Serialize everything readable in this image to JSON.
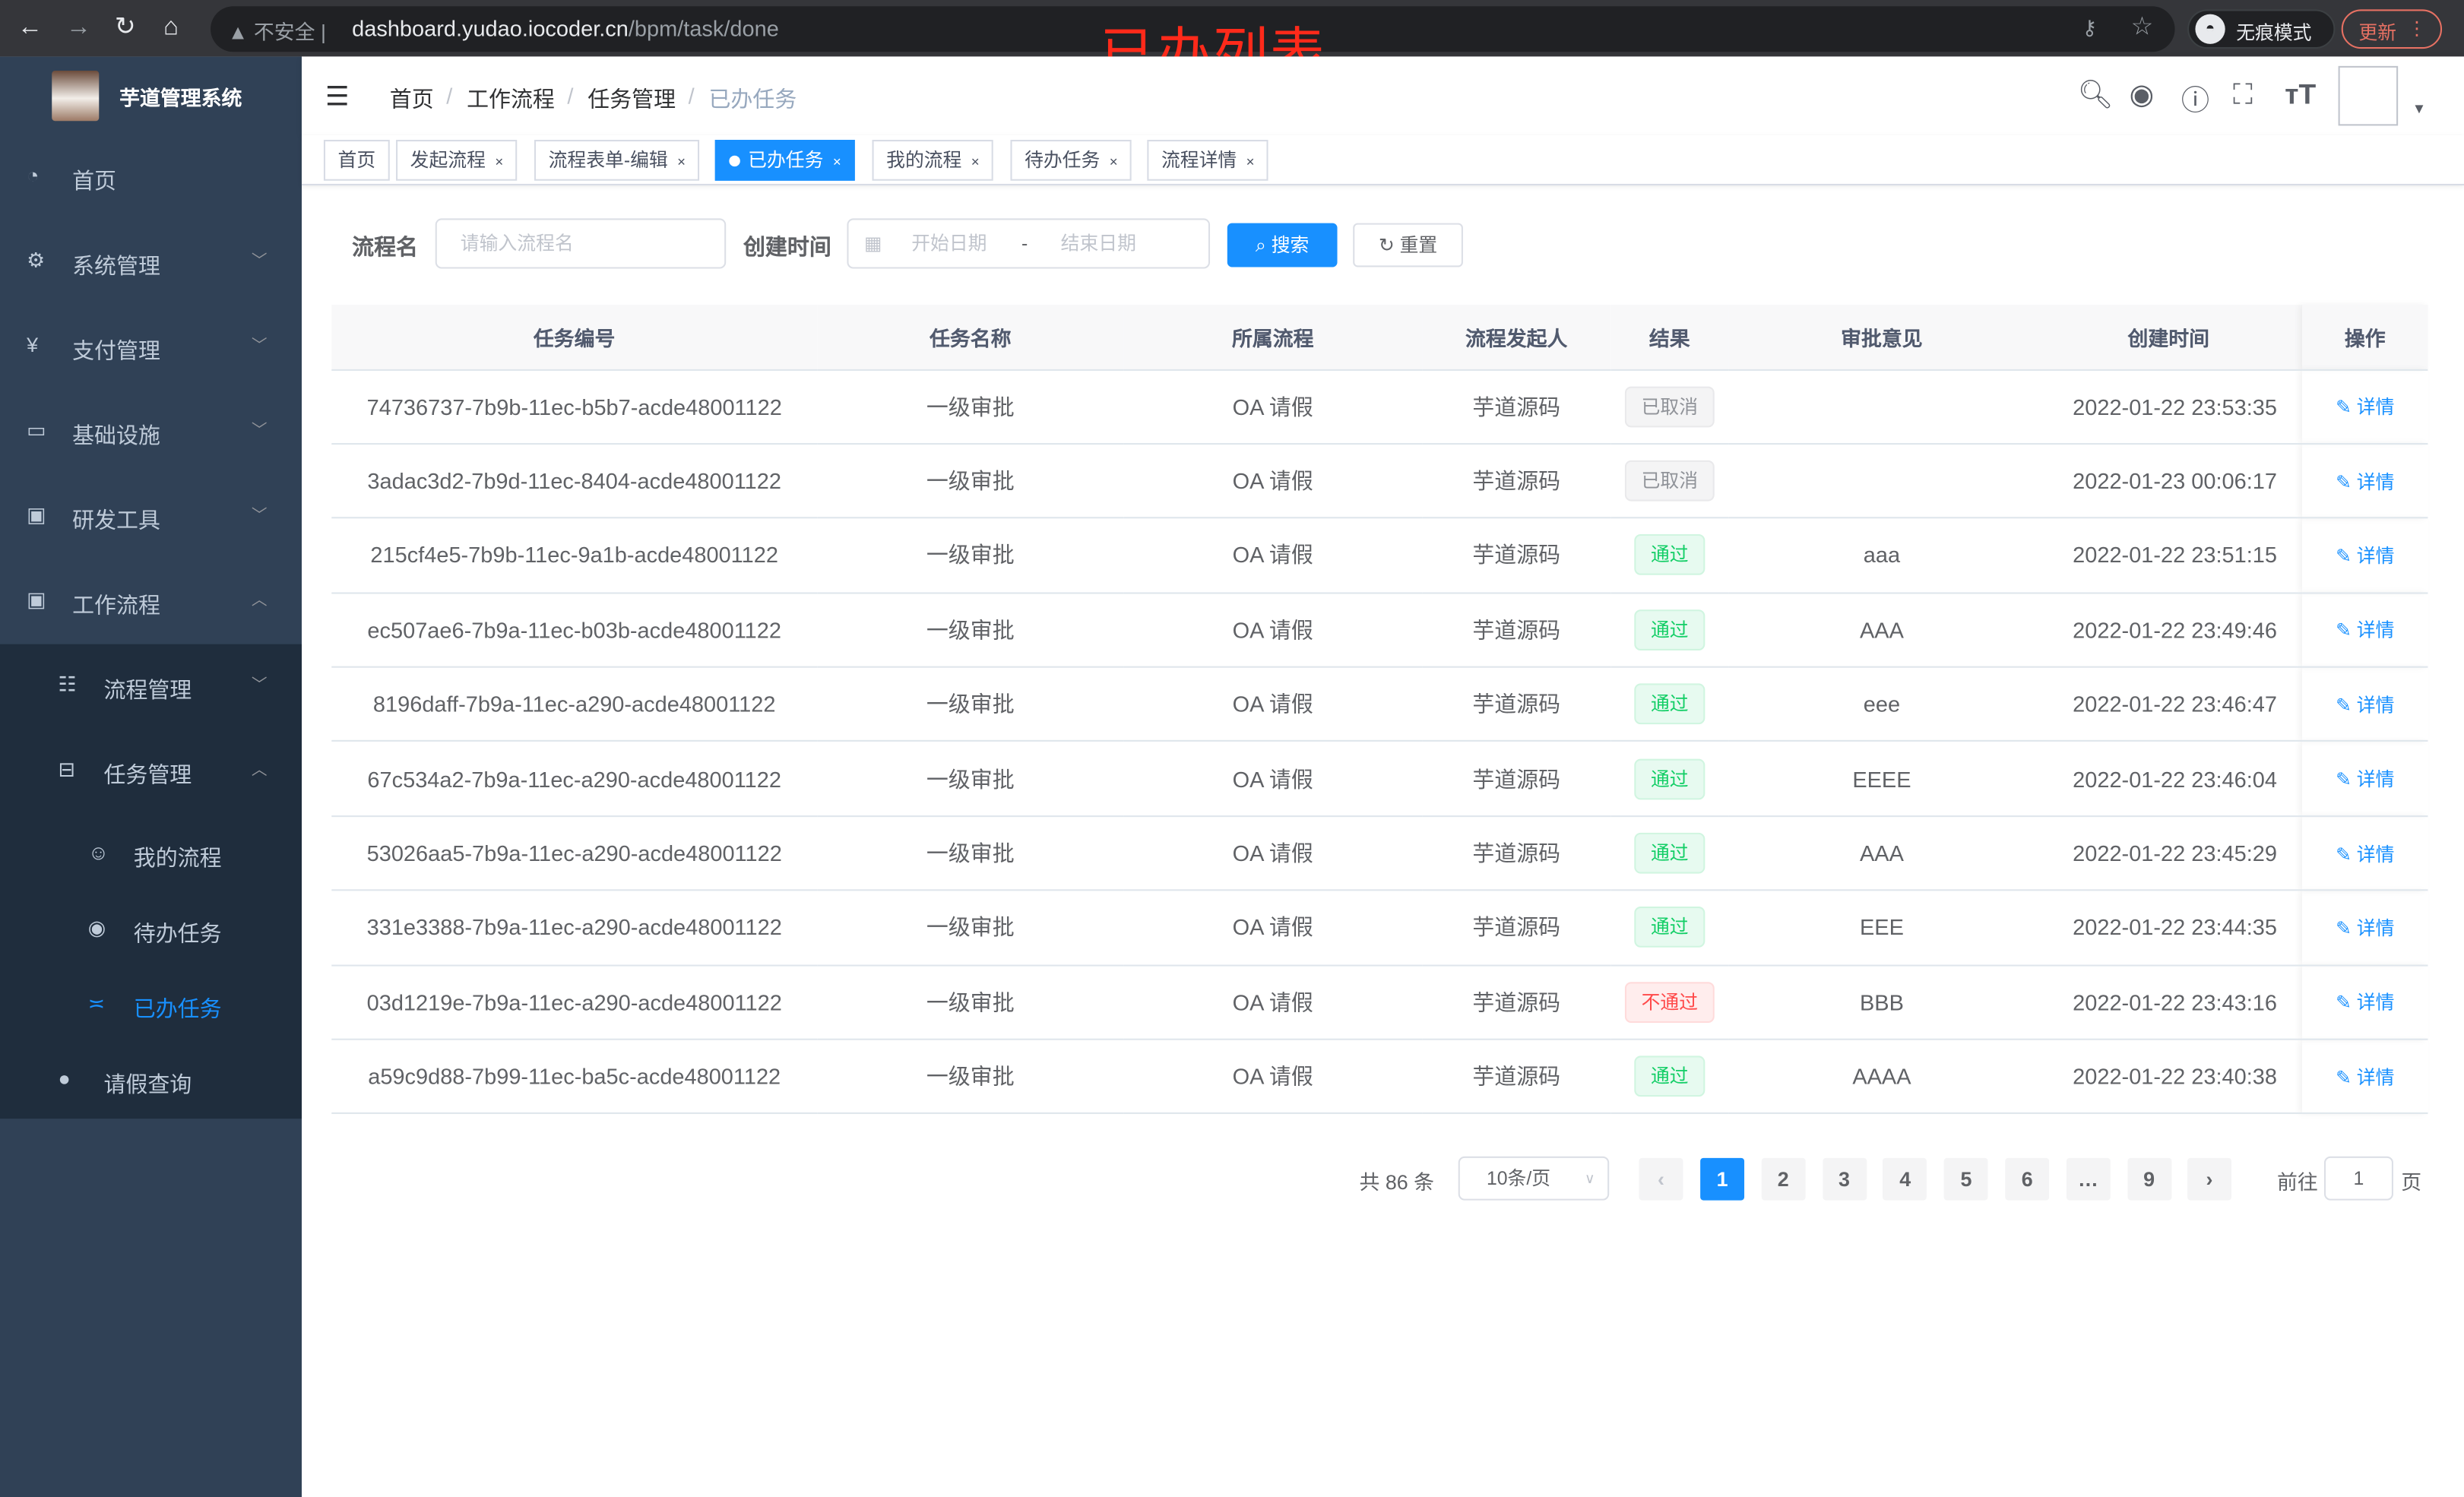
{
  "browser": {
    "insecure_label": "不安全",
    "url_host": "dashboard.yudao.iocoder.cn",
    "url_path": "/bpm/task/done",
    "incognito_label": "无痕模式",
    "update_label": "更新"
  },
  "overlay_title": "已办列表",
  "app": {
    "title": "芋道管理系统"
  },
  "sidebar": {
    "items": [
      {
        "label": "首页",
        "icon": "dashboard-icon",
        "level": 0,
        "arrow": ""
      },
      {
        "label": "系统管理",
        "icon": "gear-icon",
        "level": 0,
        "arrow": "down"
      },
      {
        "label": "支付管理",
        "icon": "yen-icon",
        "level": 0,
        "arrow": "down"
      },
      {
        "label": "基础设施",
        "icon": "monitor-icon",
        "level": 0,
        "arrow": "down"
      },
      {
        "label": "研发工具",
        "icon": "toolbox-icon",
        "level": 0,
        "arrow": "down"
      },
      {
        "label": "工作流程",
        "icon": "toolbox-icon",
        "level": 0,
        "arrow": "up"
      },
      {
        "label": "流程管理",
        "icon": "list-icon",
        "level": 1,
        "arrow": "down"
      },
      {
        "label": "任务管理",
        "icon": "tree-icon",
        "level": 1,
        "arrow": "up"
      },
      {
        "label": "我的流程",
        "icon": "chat-icon",
        "level": 2,
        "arrow": ""
      },
      {
        "label": "待办任务",
        "icon": "eye-icon",
        "level": 2,
        "arrow": ""
      },
      {
        "label": "已办任务",
        "icon": "done-icon",
        "level": 2,
        "arrow": "",
        "active": true
      },
      {
        "label": "请假查询",
        "icon": "user-icon",
        "level": 1,
        "arrow": ""
      }
    ]
  },
  "breadcrumb": [
    "首页",
    "工作流程",
    "任务管理",
    "已办任务"
  ],
  "tags": [
    {
      "label": "首页",
      "closable": false
    },
    {
      "label": "发起流程",
      "closable": true
    },
    {
      "label": "流程表单-编辑",
      "closable": true
    },
    {
      "label": "已办任务",
      "closable": true,
      "active": true
    },
    {
      "label": "我的流程",
      "closable": true
    },
    {
      "label": "待办任务",
      "closable": true
    },
    {
      "label": "流程详情",
      "closable": true
    }
  ],
  "search": {
    "name_label": "流程名",
    "name_placeholder": "请输入流程名",
    "time_label": "创建时间",
    "start_placeholder": "开始日期",
    "range_sep": "-",
    "end_placeholder": "结束日期",
    "search_button": "搜索",
    "reset_button": "重置"
  },
  "table": {
    "columns": [
      "任务编号",
      "任务名称",
      "所属流程",
      "流程发起人",
      "结果",
      "审批意见",
      "创建时间",
      "操作"
    ],
    "action_label": "详情",
    "rows": [
      {
        "id": "74736737-7b9b-11ec-b5b7-acde48001122",
        "name": "一级审批",
        "flow": "OA 请假",
        "starter": "芋道源码",
        "result": "已取消",
        "status": "cancel",
        "opinion": "",
        "time": "2022-01-22 23:53:35"
      },
      {
        "id": "3adac3d2-7b9d-11ec-8404-acde48001122",
        "name": "一级审批",
        "flow": "OA 请假",
        "starter": "芋道源码",
        "result": "已取消",
        "status": "cancel",
        "opinion": "",
        "time": "2022-01-23 00:06:17"
      },
      {
        "id": "215cf4e5-7b9b-11ec-9a1b-acde48001122",
        "name": "一级审批",
        "flow": "OA 请假",
        "starter": "芋道源码",
        "result": "通过",
        "status": "pass",
        "opinion": "aaa",
        "time": "2022-01-22 23:51:15"
      },
      {
        "id": "ec507ae6-7b9a-11ec-b03b-acde48001122",
        "name": "一级审批",
        "flow": "OA 请假",
        "starter": "芋道源码",
        "result": "通过",
        "status": "pass",
        "opinion": "AAA",
        "time": "2022-01-22 23:49:46"
      },
      {
        "id": "8196daff-7b9a-11ec-a290-acde48001122",
        "name": "一级审批",
        "flow": "OA 请假",
        "starter": "芋道源码",
        "result": "通过",
        "status": "pass",
        "opinion": "eee",
        "time": "2022-01-22 23:46:47"
      },
      {
        "id": "67c534a2-7b9a-11ec-a290-acde48001122",
        "name": "一级审批",
        "flow": "OA 请假",
        "starter": "芋道源码",
        "result": "通过",
        "status": "pass",
        "opinion": "EEEE",
        "time": "2022-01-22 23:46:04"
      },
      {
        "id": "53026aa5-7b9a-11ec-a290-acde48001122",
        "name": "一级审批",
        "flow": "OA 请假",
        "starter": "芋道源码",
        "result": "通过",
        "status": "pass",
        "opinion": "AAA",
        "time": "2022-01-22 23:45:29"
      },
      {
        "id": "331e3388-7b9a-11ec-a290-acde48001122",
        "name": "一级审批",
        "flow": "OA 请假",
        "starter": "芋道源码",
        "result": "通过",
        "status": "pass",
        "opinion": "EEE",
        "time": "2022-01-22 23:44:35"
      },
      {
        "id": "03d1219e-7b9a-11ec-a290-acde48001122",
        "name": "一级审批",
        "flow": "OA 请假",
        "starter": "芋道源码",
        "result": "不通过",
        "status": "reject",
        "opinion": "BBB",
        "time": "2022-01-22 23:43:16"
      },
      {
        "id": "a59c9d88-7b99-11ec-ba5c-acde48001122",
        "name": "一级审批",
        "flow": "OA 请假",
        "starter": "芋道源码",
        "result": "通过",
        "status": "pass",
        "opinion": "AAAA",
        "time": "2022-01-22 23:40:38"
      }
    ]
  },
  "pagination": {
    "total_text": "共 86 条",
    "page_size": "10条/页",
    "pages": [
      "1",
      "2",
      "3",
      "4",
      "5",
      "6",
      "…",
      "9"
    ],
    "current": "1",
    "goto_label": "前往",
    "goto_value": "1",
    "goto_suffix": "页"
  },
  "colors": {
    "primary": "#1890ff",
    "sidebar": "#304156",
    "submenu": "#1f2d3d",
    "success": "#13ce66",
    "danger": "#ff4949",
    "overlay": "#ff2a1a"
  }
}
